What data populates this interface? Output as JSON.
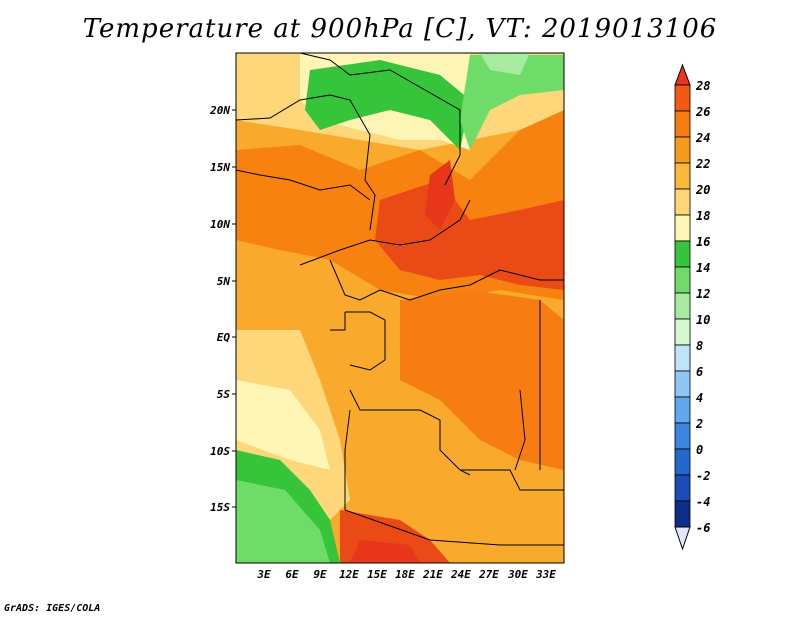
{
  "title": "Temperature at 900hPa [C], VT: 2019013106",
  "footer": "GrADS: IGES/COLA",
  "map": {
    "lat_labels": [
      "20N",
      "15N",
      "10N",
      "5N",
      "EQ",
      "5S",
      "10S",
      "15S"
    ],
    "lon_labels": [
      "3E",
      "6E",
      "9E",
      "12E",
      "15E",
      "18E",
      "21E",
      "24E",
      "27E",
      "30E",
      "33E"
    ]
  },
  "colorbar": {
    "levels": [
      "28",
      "26",
      "24",
      "22",
      "20",
      "18",
      "16",
      "14",
      "12",
      "10",
      "8",
      "6",
      "4",
      "2",
      "0",
      "-2",
      "-4",
      "-6"
    ],
    "colors": [
      "#e8361a",
      "#f25a13",
      "#f77d12",
      "#f99b1a",
      "#fbb93a",
      "#fdd77a",
      "#fff5b4",
      "#36c43b",
      "#6fdc6a",
      "#a6eba0",
      "#d6f7d2",
      "#bfe3fb",
      "#8ec7f5",
      "#5fa8ee",
      "#3b86e0",
      "#2467d0",
      "#1a4db8",
      "#0f2e8a",
      "#081a5a"
    ],
    "top_color": "#e8361a",
    "bottom_color": "#e4e7fb"
  }
}
